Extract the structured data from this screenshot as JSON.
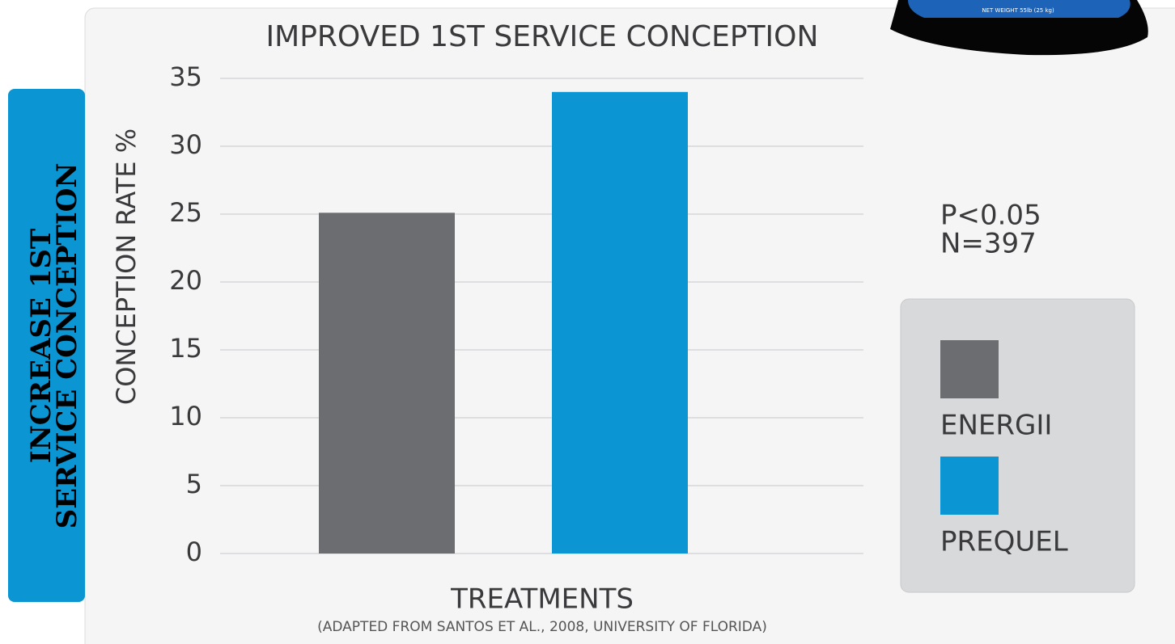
{
  "side_tab": [
    "INCREASE 1ST",
    "SERVICE CONCEPTION"
  ],
  "product_label": "NET WEIGHT 55lb (25 kg)",
  "chart_data": {
    "type": "bar",
    "title": "IMPROVED 1ST SERVICE CONCEPTION",
    "y_label": "CONCEPTION RATE %",
    "x_label": "TREATMENTS",
    "caption": "(ADAPTED FROM SANTOS ET AL., 2008, UNIVERSITY OF FLORIDA)",
    "annotations": [
      "P<0.05",
      "N=397"
    ],
    "categories": [
      null
    ],
    "series": [
      {
        "name": "ENERGII",
        "color": "#6c6d70",
        "values": [
          25.1
        ]
      },
      {
        "name": "PREQUEL",
        "color": "#0b95d3",
        "values": [
          34
        ]
      }
    ],
    "ylim": [
      0,
      35
    ],
    "yticks": [
      0,
      5,
      10,
      15,
      20,
      25,
      30,
      35
    ],
    "grid": true,
    "legend": "right"
  }
}
